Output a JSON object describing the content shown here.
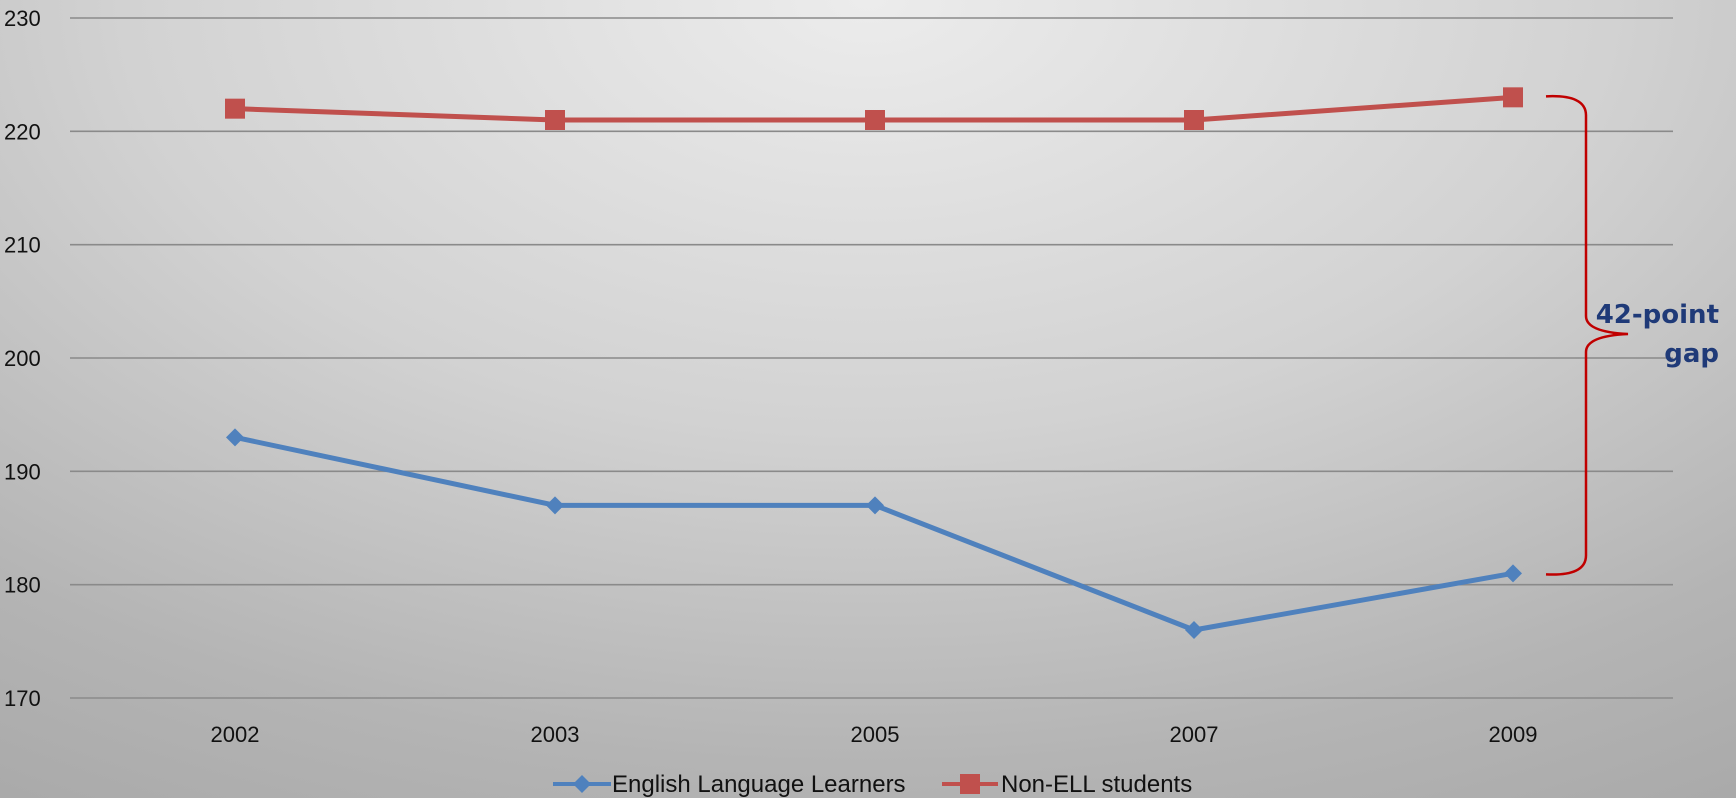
{
  "chart_data": {
    "type": "line",
    "categories": [
      "2002",
      "2003",
      "2005",
      "2007",
      "2009"
    ],
    "ylim": [
      170,
      230
    ],
    "yticks": [
      170,
      180,
      190,
      200,
      210,
      220,
      230
    ],
    "grid": true,
    "legend_position": "bottom",
    "series": [
      {
        "name": "English Language Learners",
        "values": [
          193,
          187,
          187,
          176,
          181
        ],
        "color": "#4F81BD",
        "marker": "diamond"
      },
      {
        "name": "Non-ELL students",
        "values": [
          222,
          221,
          221,
          221,
          223
        ],
        "color": "#C0504D",
        "marker": "square"
      }
    ],
    "annotation": {
      "line1": "42-point",
      "line2": "gap",
      "bracket_color": "#C00000",
      "text_color": "#1F3A78"
    }
  }
}
